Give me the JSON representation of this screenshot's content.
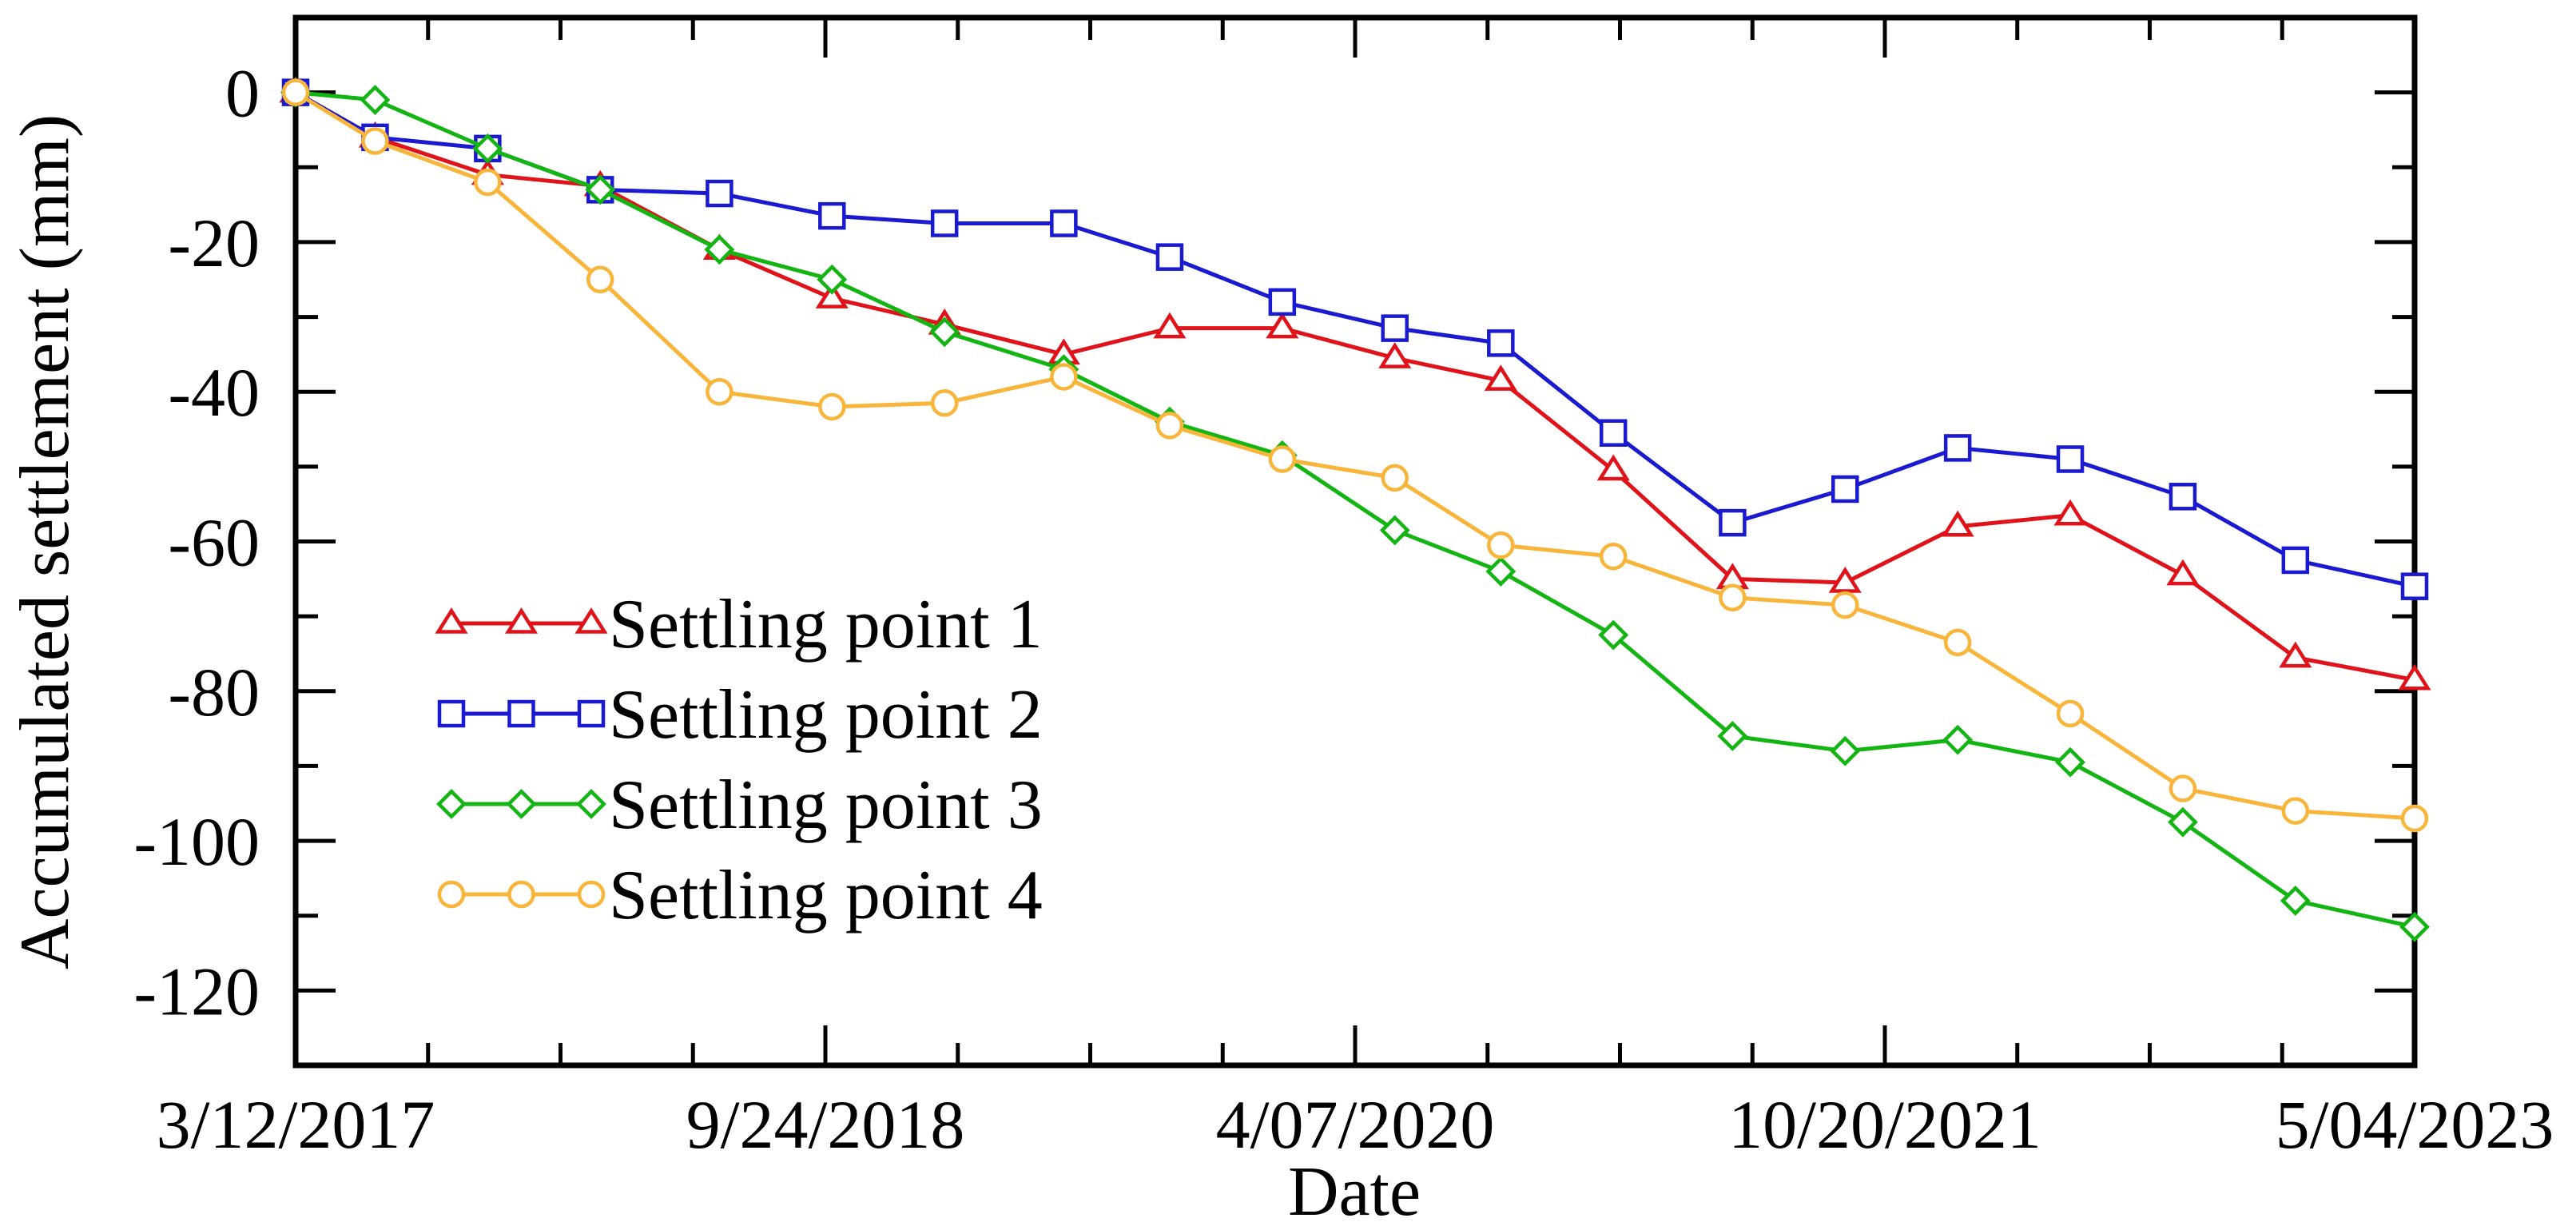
{
  "chart_data": {
    "type": "line",
    "title": "",
    "xlabel": "Date",
    "ylabel": "Accumulated settlement (mm)",
    "ylim": [
      -130,
      10
    ],
    "xlim": [
      0,
      16
    ],
    "yticks": [
      0,
      -20,
      -40,
      -60,
      -80,
      -100,
      -120
    ],
    "ytick_labels": [
      "0",
      "-20",
      "-40",
      "-60",
      "-80",
      "-100",
      "-120"
    ],
    "xticks_major": [
      0,
      4,
      8,
      12,
      16
    ],
    "xtick_labels": [
      "3/12/2017",
      "9/24/2018",
      "4/07/2020",
      "10/20/2021",
      "5/04/2023"
    ],
    "xticks_minor": [
      1,
      2,
      3,
      5,
      6,
      7,
      9,
      10,
      11,
      13,
      14,
      15
    ],
    "grid": false,
    "legend_position": "bottom-left",
    "x": [
      0,
      0.6,
      1.45,
      2.3,
      3.2,
      4.05,
      4.9,
      5.8,
      6.6,
      7.45,
      8.3,
      9.1,
      9.95,
      10.85,
      11.7,
      12.55,
      13.4,
      14.25,
      15.1,
      16
    ],
    "series": [
      {
        "name": "Settling point 1",
        "color": "#e0131a",
        "marker": "triangle",
        "values": [
          0,
          -6,
          -11,
          -12.5,
          -21,
          -27.5,
          -31,
          -35,
          -31.5,
          -31.5,
          -35.5,
          -38.5,
          -50.5,
          -65,
          -65.5,
          -58,
          -56.5,
          -64.5,
          -75.5,
          -78.5
        ]
      },
      {
        "name": "Settling point 2",
        "color": "#1a1ad0",
        "marker": "square",
        "values": [
          0,
          -6,
          -7.5,
          -13,
          -13.5,
          -16.5,
          -17.5,
          -17.5,
          -22,
          -28,
          -31.5,
          -33.5,
          -45.5,
          -57.5,
          -53,
          -47.5,
          -49,
          -54,
          -62.5,
          -66
        ]
      },
      {
        "name": "Settling point 3",
        "color": "#13b513",
        "marker": "diamond",
        "values": [
          0,
          -1,
          -7.5,
          -13,
          -21,
          -25,
          -32,
          -37,
          -44,
          -48.5,
          -58.5,
          -64,
          -72.5,
          -86,
          -88,
          -86.5,
          -89.5,
          -97.5,
          -108,
          -111.5
        ]
      },
      {
        "name": "Settling point 4",
        "color": "#f9b53a",
        "marker": "circle",
        "values": [
          0,
          -6.5,
          -12,
          -25,
          -40,
          -42,
          -41.5,
          -38,
          -44.5,
          -49,
          -51.5,
          -60.5,
          -62,
          -67.5,
          -68.5,
          -73.5,
          -83,
          -93,
          -96,
          -97
        ]
      }
    ]
  }
}
